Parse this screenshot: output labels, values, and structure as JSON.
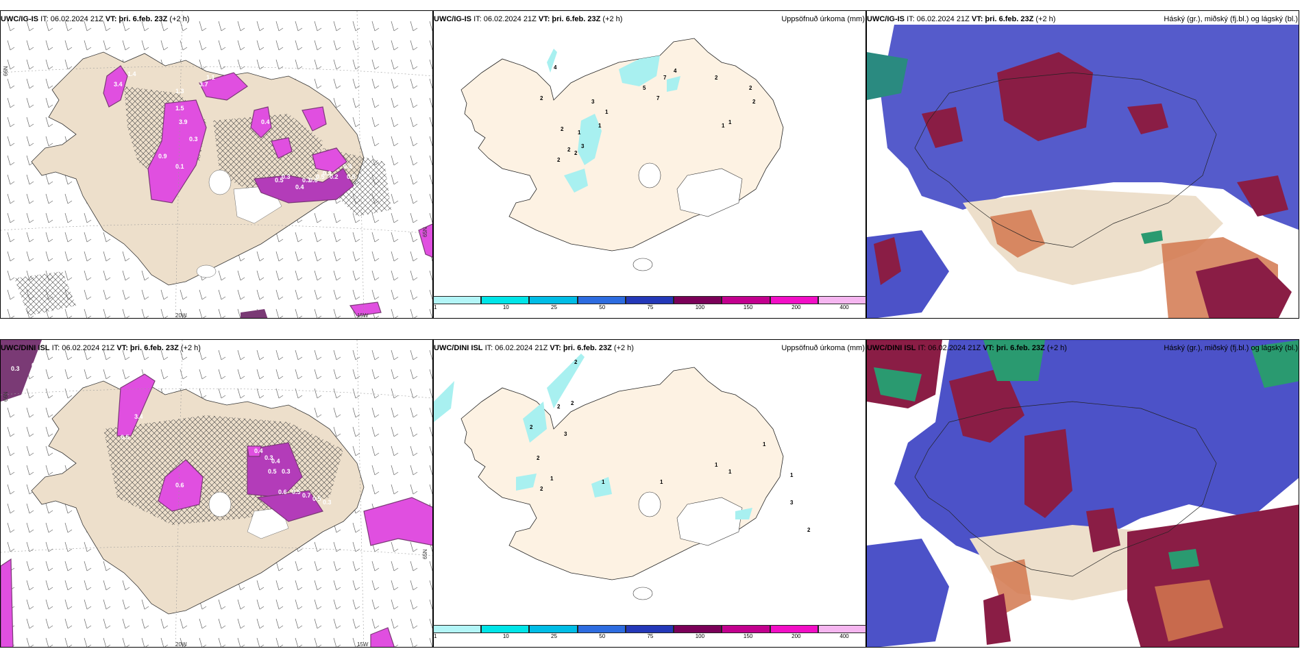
{
  "panels": {
    "top_left": {
      "model": "UWC/IG-IS",
      "it": "IT: 06.02.2024 21Z",
      "vt_label": "VT:",
      "vt": "þri. 6.feb. 23Z",
      "lead": "(+2 h)",
      "right": ""
    },
    "top_mid": {
      "model": "UWC/IG-IS",
      "it": "IT: 06.02.2024 21Z",
      "vt_label": "VT:",
      "vt": "þri. 6.feb. 23Z",
      "lead": "(+2 h)",
      "right": "Uppsöfnuð úrkoma (mm)"
    },
    "top_right": {
      "model": "UWC/IG-IS",
      "it": "IT: 06.02.2024 21Z",
      "vt_label": "VT:",
      "vt": "þri. 6.feb. 23Z",
      "lead": "(+2 h)",
      "right": "Háský (gr.), miðský (fj.bl.) og lágský (bl.)"
    },
    "bot_left": {
      "model": "UWC/DINI ISL",
      "it": "IT: 06.02.2024 21Z",
      "vt_label": "VT:",
      "vt": "þri. 6.feb. 23Z",
      "lead": "(+2 h)",
      "right": ""
    },
    "bot_mid": {
      "model": "UWC/DINI ISL",
      "it": "IT: 06.02.2024 21Z",
      "vt_label": "VT:",
      "vt": "þri. 6.feb. 23Z",
      "lead": "(+2 h)",
      "right": "Uppsöfnuð úrkoma (mm)"
    },
    "bot_right": {
      "model": "UWC/DINI ISL",
      "it": "IT: 06.02.2024 21Z",
      "vt_label": "VT:",
      "vt": "þri. 6.feb. 23Z",
      "lead": "(+2 h)",
      "right": "Háský (gr.), miðský (fj.bl.) og lágský (bl.)"
    }
  },
  "grid_labels": {
    "lon_20w": "20W",
    "lon_15w": "15W",
    "lat_65n": "65N",
    "lat_66n": "66N"
  },
  "precip_colorbar": {
    "ticks": [
      "1",
      "10",
      "25",
      "50",
      "75",
      "100",
      "150",
      "200",
      "400"
    ],
    "colors": [
      "#b3f5f7",
      "#00e5e8",
      "#00bde6",
      "#2d6ce0",
      "#2438b8",
      "#7a0058",
      "#c2008e",
      "#f20fc6",
      "#f5b6f0"
    ]
  },
  "top_left_values": [
    "1.1",
    "3.7",
    "1.3",
    "3.9",
    "0.9",
    "0.3",
    "0.4",
    "1.5",
    "3.4",
    "1.4",
    "0.1",
    "0.5",
    "0.3",
    "0.4",
    "0.6",
    "0.5",
    "0.3",
    "0.2",
    "0.4",
    "0.5",
    "0.3"
  ],
  "bot_left_values": [
    "0.3",
    "0.3",
    "3.4",
    "0.5",
    "0.6",
    "0.4",
    "0.3",
    "0.4",
    "0.5",
    "0.3",
    "0.6",
    "0.5",
    "0.7",
    "0.5",
    "0.3"
  ],
  "top_mid_values": [
    "4",
    "2",
    "3",
    "2",
    "1",
    "3",
    "2",
    "2",
    "2",
    "2",
    "4",
    "2",
    "2",
    "1",
    "1",
    "7",
    "5",
    "7",
    "1",
    "1"
  ],
  "bot_mid_values": [
    "2",
    "2",
    "2",
    "2",
    "3",
    "2",
    "1",
    "2",
    "1",
    "1",
    "1",
    "1",
    "1",
    "1",
    "3",
    "2"
  ],
  "colors": {
    "land": "#eddfcb",
    "land_mid": "#fdf2e3",
    "purple": "#b33cb9",
    "magenta": "#e04fe0",
    "darkpurple": "#7a3a75",
    "cloud_blue": "#4c52c8",
    "cloud_red": "#8a1d45",
    "cloud_orange": "#d2784f",
    "cloud_green": "#2a9a70"
  }
}
